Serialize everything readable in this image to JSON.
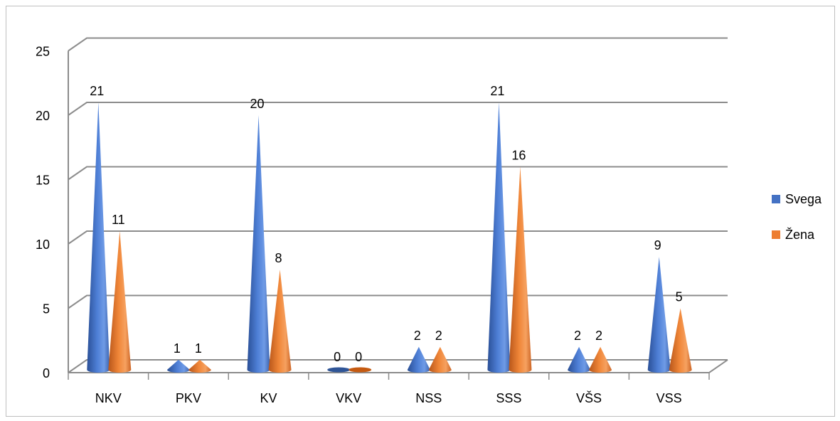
{
  "chart_data": {
    "type": "bar",
    "style": "3d-cone",
    "categories": [
      "NKV",
      "PKV",
      "KV",
      "VKV",
      "NSS",
      "SSS",
      "VŠS",
      "VSS"
    ],
    "series": [
      {
        "name": "Svega",
        "values": [
          21,
          1,
          20,
          0,
          2,
          21,
          2,
          9
        ],
        "color": "#4472C4"
      },
      {
        "name": "Žena",
        "values": [
          11,
          1,
          8,
          0,
          2,
          16,
          2,
          5
        ],
        "color": "#ED7D31"
      }
    ],
    "yticks": [
      0,
      5,
      10,
      15,
      20,
      25
    ],
    "ylim": [
      0,
      25
    ],
    "grid": true,
    "legend_position": "right"
  }
}
